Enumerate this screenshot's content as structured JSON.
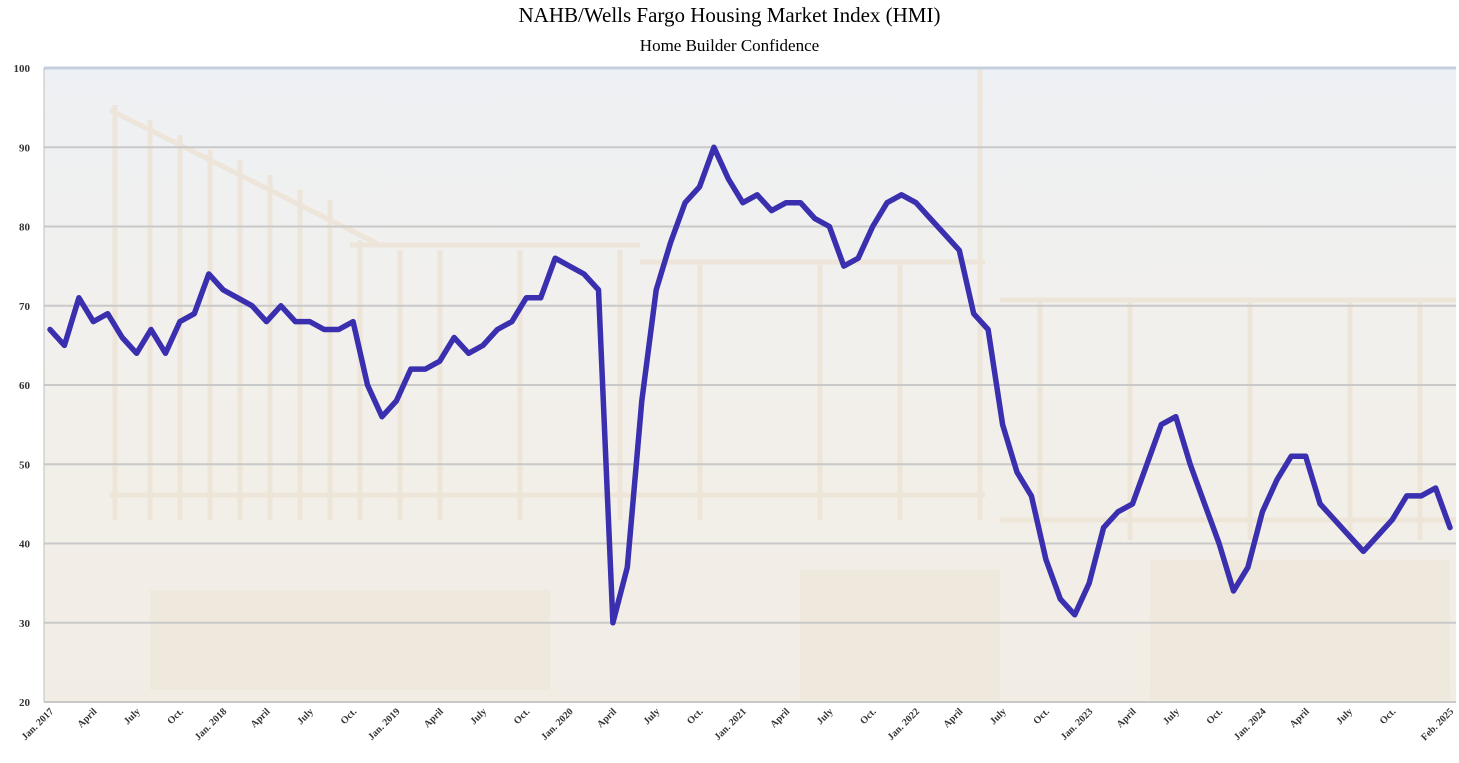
{
  "colors": {
    "line": "#3a2fae",
    "grid": "#c9c9c9",
    "background_sky": "#e3e7ec",
    "background_wood": "#efe6d8"
  },
  "chart_data": {
    "type": "line",
    "title": "NAHB/Wells Fargo Housing Market Index (HMI)",
    "subtitle": "Home Builder Confidence",
    "xlabel": "",
    "ylabel": "",
    "ylim": [
      20,
      100
    ],
    "yticks": [
      20,
      30,
      40,
      50,
      60,
      70,
      80,
      90,
      100
    ],
    "grid": true,
    "legend": "none",
    "x_labels": [
      {
        "index": 0,
        "label": "Jan. 2017"
      },
      {
        "index": 3,
        "label": "April"
      },
      {
        "index": 6,
        "label": "July"
      },
      {
        "index": 9,
        "label": "Oct."
      },
      {
        "index": 12,
        "label": "Jan. 2018"
      },
      {
        "index": 15,
        "label": "April"
      },
      {
        "index": 18,
        "label": "July"
      },
      {
        "index": 21,
        "label": "Oct."
      },
      {
        "index": 24,
        "label": "Jan. 2019"
      },
      {
        "index": 27,
        "label": "April"
      },
      {
        "index": 30,
        "label": "July"
      },
      {
        "index": 33,
        "label": "Oct."
      },
      {
        "index": 36,
        "label": "Jan. 2020"
      },
      {
        "index": 39,
        "label": "April"
      },
      {
        "index": 42,
        "label": "July"
      },
      {
        "index": 45,
        "label": "Oct."
      },
      {
        "index": 48,
        "label": "Jan. 2021"
      },
      {
        "index": 51,
        "label": "April"
      },
      {
        "index": 54,
        "label": "July"
      },
      {
        "index": 57,
        "label": "Oct."
      },
      {
        "index": 60,
        "label": "Jan. 2022"
      },
      {
        "index": 63,
        "label": "April"
      },
      {
        "index": 66,
        "label": "July"
      },
      {
        "index": 69,
        "label": "Oct."
      },
      {
        "index": 72,
        "label": "Jan. 2023"
      },
      {
        "index": 75,
        "label": "April"
      },
      {
        "index": 78,
        "label": "July"
      },
      {
        "index": 81,
        "label": "Oct."
      },
      {
        "index": 84,
        "label": "Jan. 2024"
      },
      {
        "index": 87,
        "label": "April"
      },
      {
        "index": 90,
        "label": "July"
      },
      {
        "index": 93,
        "label": "Oct."
      },
      {
        "index": 97,
        "label": "Feb. 2025"
      }
    ],
    "series": [
      {
        "values": [
          67,
          65,
          71,
          68,
          69,
          66,
          64,
          67,
          64,
          68,
          69,
          74,
          72,
          71,
          70,
          68,
          70,
          68,
          68,
          67,
          67,
          68,
          60,
          56,
          58,
          62,
          62,
          63,
          66,
          64,
          65,
          67,
          68,
          71,
          71,
          76,
          75,
          74,
          72,
          30,
          37,
          58,
          72,
          78,
          83,
          85,
          90,
          86,
          83,
          84,
          82,
          83,
          83,
          81,
          80,
          75,
          76,
          80,
          83,
          84,
          83,
          81,
          79,
          77,
          69,
          67,
          55,
          49,
          46,
          38,
          33,
          31,
          35,
          42,
          44,
          45,
          50,
          55,
          56,
          50,
          45,
          40,
          34,
          37,
          44,
          48,
          51,
          51,
          45,
          43,
          41,
          39,
          41,
          43,
          46,
          46,
          47,
          42
        ]
      }
    ]
  }
}
